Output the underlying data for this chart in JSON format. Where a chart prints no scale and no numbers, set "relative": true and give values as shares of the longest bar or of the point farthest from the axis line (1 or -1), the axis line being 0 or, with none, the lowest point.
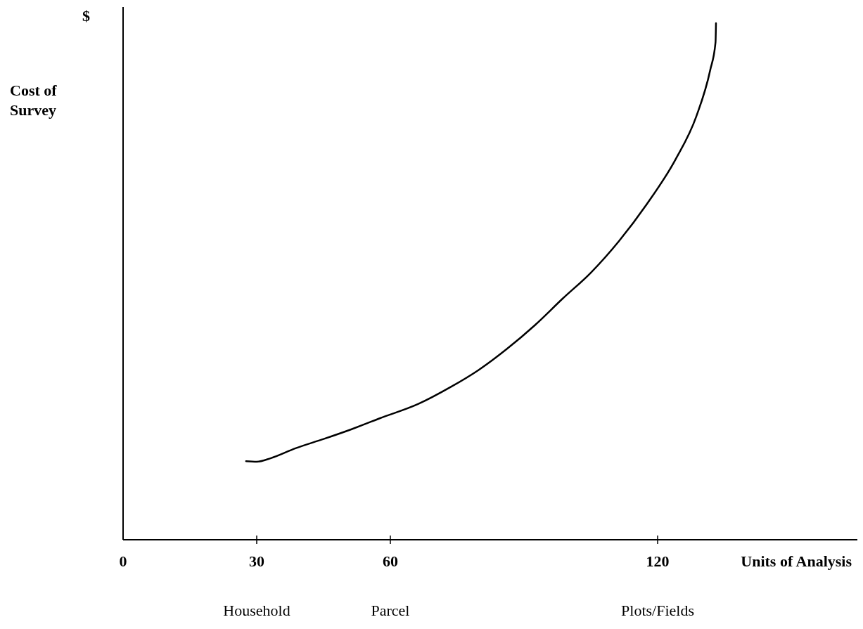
{
  "chart_data": {
    "type": "line",
    "relative": true,
    "xlabel": "Units of Analysis",
    "ylabel": "Cost of Survey",
    "xlim": [
      0,
      165
    ],
    "xticks": [
      0,
      30,
      60,
      120
    ],
    "x": [
      27.6,
      30.0,
      33.2,
      38.7,
      45.0,
      51.3,
      57.6,
      66.3,
      73.4,
      79.7,
      86.1,
      92.4,
      98.7,
      105.0,
      111.3,
      117.6,
      124.0,
      128.7,
      131.8,
      133.0,
      133.1
    ],
    "series": [
      {
        "color": "#000000",
        "values": [
          0.152,
          0.151,
          0.158,
          0.177,
          0.195,
          0.214,
          0.235,
          0.263,
          0.295,
          0.328,
          0.369,
          0.415,
          0.467,
          0.517,
          0.578,
          0.65,
          0.736,
          0.82,
          0.909,
          0.963,
          1
        ]
      }
    ],
    "annotations": [
      "$",
      "Household",
      "Parcel",
      "Plots/Fields"
    ],
    "grid": false,
    "marker": "none",
    "line_style": "solid"
  }
}
